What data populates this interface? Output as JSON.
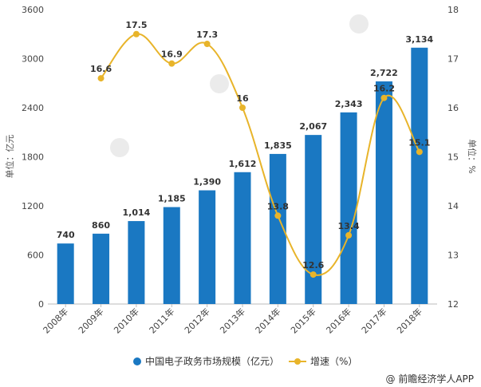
{
  "chart_data": {
    "type": "bar",
    "categories": [
      "2008年",
      "2009年",
      "2010年",
      "2011年",
      "2012年",
      "2013年",
      "2014年",
      "2015年",
      "2016年",
      "2017年",
      "2018年"
    ],
    "series": [
      {
        "name": "中国电子政务市场规模（亿元）",
        "type": "bar",
        "axis": "left",
        "color": "#1a78c2",
        "values": [
          740,
          860,
          1014,
          1185,
          1390,
          1612,
          1835,
          2067,
          2343,
          2722,
          3134
        ],
        "labels": [
          "740",
          "860",
          "1,014",
          "1,185",
          "1,390",
          "1,612",
          "1,835",
          "2,067",
          "2,343",
          "2,722",
          "3,134"
        ]
      },
      {
        "name": "增速（%）",
        "type": "line",
        "axis": "right",
        "color": "#e8b42a",
        "values": [
          null,
          16.6,
          17.5,
          16.9,
          17.3,
          16,
          13.8,
          12.6,
          13.4,
          16.2,
          15.1
        ],
        "labels": [
          "",
          "16.6",
          "17.5",
          "16.9",
          "17.3",
          "16",
          "13.8",
          "12.6",
          "13.4",
          "16.2",
          "15.1"
        ]
      }
    ],
    "ylabel_left": "单位：亿元",
    "ylabel_right": "单位：%",
    "ylim_left": [
      0,
      3600
    ],
    "yticks_left": [
      "0",
      "600",
      "1200",
      "1800",
      "2400",
      "3000",
      "3600"
    ],
    "ylim_right": [
      12,
      18
    ],
    "yticks_right": [
      "12",
      "13",
      "14",
      "15",
      "16",
      "17",
      "18"
    ],
    "grid": false,
    "legend": "bottom-center"
  },
  "source": "@ 前瞻经济学人APP"
}
